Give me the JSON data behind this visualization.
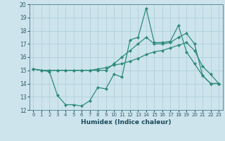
{
  "x": [
    0,
    1,
    2,
    3,
    4,
    5,
    6,
    7,
    8,
    9,
    10,
    11,
    12,
    13,
    14,
    15,
    16,
    17,
    18,
    19,
    20,
    21,
    22,
    23
  ],
  "line1": [
    15.1,
    15.0,
    14.9,
    13.1,
    12.4,
    12.4,
    12.3,
    12.7,
    13.7,
    13.6,
    14.7,
    14.5,
    17.3,
    17.5,
    19.7,
    17.1,
    17.1,
    17.2,
    18.4,
    16.4,
    15.5,
    14.6,
    14.0,
    14.0
  ],
  "line2": [
    15.1,
    15.0,
    15.0,
    15.0,
    15.0,
    15.0,
    15.0,
    15.0,
    15.1,
    15.2,
    15.4,
    15.5,
    15.7,
    15.9,
    16.2,
    16.4,
    16.5,
    16.7,
    16.9,
    17.1,
    16.5,
    15.3,
    14.7,
    14.0
  ],
  "line3": [
    15.1,
    15.0,
    15.0,
    15.0,
    15.0,
    15.0,
    15.0,
    15.0,
    15.0,
    15.0,
    15.5,
    16.0,
    16.5,
    17.0,
    17.5,
    17.0,
    17.0,
    17.1,
    17.5,
    17.8,
    17.0,
    14.6,
    14.0,
    14.0
  ],
  "line_color": "#2e8b7a",
  "bg_color": "#cde4ec",
  "grid_color": "#aaccd8",
  "xlabel": "Humidex (Indice chaleur)",
  "xlim": [
    -0.5,
    23.5
  ],
  "ylim": [
    12,
    20
  ],
  "yticks": [
    12,
    13,
    14,
    15,
    16,
    17,
    18,
    19,
    20
  ],
  "xticks": [
    0,
    1,
    2,
    3,
    4,
    5,
    6,
    7,
    8,
    9,
    10,
    11,
    12,
    13,
    14,
    15,
    16,
    17,
    18,
    19,
    20,
    21,
    22,
    23
  ]
}
